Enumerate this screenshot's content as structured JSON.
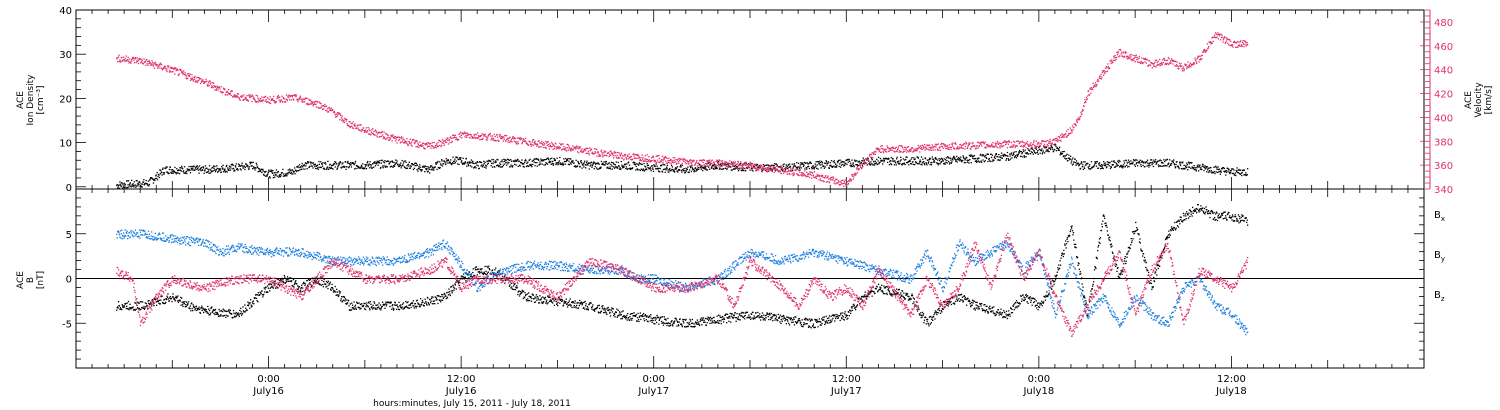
{
  "colors": {
    "black": "#000000",
    "red": "#e0306a",
    "blue": "#1e7fe0"
  },
  "xaxis": {
    "title": "hours:minutes, July 15, 2011 - July 18, 2011",
    "ticks": [
      {
        "t": 24,
        "time": "0:00",
        "day": "July16"
      },
      {
        "t": 36,
        "time": "12:00",
        "day": "July16"
      },
      {
        "t": 48,
        "time": "0:00",
        "day": "July17"
      },
      {
        "t": 60,
        "time": "12:00",
        "day": "July17"
      },
      {
        "t": 72,
        "time": "0:00",
        "day": "July18"
      },
      {
        "t": 84,
        "time": "12:00",
        "day": "July18"
      }
    ]
  },
  "chart_data": [
    {
      "type": "scatter",
      "panel": "top",
      "ylabel_left": [
        "ACE",
        "Ion Density",
        "[cm⁻³]"
      ],
      "ylabel_right": [
        "ACE",
        "Velocity",
        "[km/s]"
      ],
      "ylim_left": [
        -0.5,
        40
      ],
      "yticks_left": [
        0,
        10,
        20,
        30,
        40
      ],
      "ylim_right": [
        340,
        490
      ],
      "yticks_right": [
        340,
        360,
        380,
        400,
        420,
        440,
        460,
        480
      ],
      "x_unit": "hours since July 15, 2011 00:00",
      "series": [
        {
          "axis": "left",
          "color": "black",
          "points": [
            [
              14.5,
              0.5
            ],
            [
              16.5,
              1
            ],
            [
              17.5,
              4
            ],
            [
              20,
              4
            ],
            [
              22,
              4.5
            ],
            [
              23,
              5
            ],
            [
              24,
              3
            ],
            [
              25.5,
              3.5
            ],
            [
              26,
              5
            ],
            [
              28,
              5
            ],
            [
              30,
              5
            ],
            [
              32,
              5.5
            ],
            [
              34,
              4
            ],
            [
              35,
              6
            ],
            [
              36,
              6
            ],
            [
              37,
              5
            ],
            [
              38,
              5.5
            ],
            [
              40,
              5.5
            ],
            [
              42,
              6
            ],
            [
              44,
              5
            ],
            [
              46,
              5
            ],
            [
              48,
              4.5
            ],
            [
              50,
              4
            ],
            [
              52,
              5
            ],
            [
              54,
              4.5
            ],
            [
              56,
              4.5
            ],
            [
              58,
              5
            ],
            [
              60,
              5.5
            ],
            [
              62,
              6
            ],
            [
              64,
              6
            ],
            [
              66,
              6
            ],
            [
              68,
              6.5
            ],
            [
              70,
              7
            ],
            [
              71.5,
              8
            ],
            [
              73,
              9
            ],
            [
              74,
              6
            ],
            [
              74.5,
              5
            ],
            [
              76,
              5
            ],
            [
              78,
              5.5
            ],
            [
              80,
              5.5
            ],
            [
              82,
              4.5
            ],
            [
              84,
              3.5
            ],
            [
              85,
              3.5
            ]
          ]
        },
        {
          "axis": "right",
          "color": "red",
          "points": [
            [
              14.5,
              450
            ],
            [
              16,
              448
            ],
            [
              18,
              440
            ],
            [
              20,
              430
            ],
            [
              22,
              418
            ],
            [
              24,
              415
            ],
            [
              25.5,
              417
            ],
            [
              27,
              412
            ],
            [
              28,
              405
            ],
            [
              29,
              395
            ],
            [
              30,
              390
            ],
            [
              32,
              382
            ],
            [
              34,
              376
            ],
            [
              35,
              380
            ],
            [
              36,
              386
            ],
            [
              38,
              384
            ],
            [
              40,
              380
            ],
            [
              42,
              376
            ],
            [
              44,
              372
            ],
            [
              46,
              368
            ],
            [
              48,
              366
            ],
            [
              50,
              363
            ],
            [
              52,
              362
            ],
            [
              54,
              360
            ],
            [
              56,
              356
            ],
            [
              58,
              352
            ],
            [
              59,
              348
            ],
            [
              60,
              345
            ],
            [
              61,
              362
            ],
            [
              62,
              374
            ],
            [
              64,
              374
            ],
            [
              66,
              376
            ],
            [
              68,
              377
            ],
            [
              70,
              378
            ],
            [
              72,
              378
            ],
            [
              73,
              380
            ],
            [
              74,
              390
            ],
            [
              74.5,
              400
            ],
            [
              75,
              420
            ],
            [
              76,
              438
            ],
            [
              77,
              455
            ],
            [
              78,
              450
            ],
            [
              79,
              445
            ],
            [
              80,
              448
            ],
            [
              81,
              442
            ],
            [
              82,
              450
            ],
            [
              83,
              470
            ],
            [
              84,
              462
            ],
            [
              85,
              462
            ]
          ]
        }
      ]
    },
    {
      "type": "scatter",
      "panel": "bottom",
      "ylabel": [
        "ACE",
        "B",
        "[nT]"
      ],
      "ylim": [
        -10,
        10
      ],
      "yticks": [
        -5,
        0,
        5
      ],
      "x_unit": "hours since July 15, 2011 00:00",
      "legend": [
        {
          "label": "Bx",
          "color": "black"
        },
        {
          "label": "By",
          "color": "blue"
        },
        {
          "label": "Bz",
          "color": "red"
        }
      ],
      "series": [
        {
          "name": "Bx",
          "color": "black",
          "points": [
            [
              14.5,
              -3
            ],
            [
              16,
              -3
            ],
            [
              18,
              -2
            ],
            [
              19,
              -3
            ],
            [
              20,
              -3.5
            ],
            [
              22,
              -4
            ],
            [
              24,
              -1
            ],
            [
              25,
              0
            ],
            [
              26,
              -1
            ],
            [
              27,
              0
            ],
            [
              28,
              -1
            ],
            [
              29,
              -3
            ],
            [
              30,
              -3
            ],
            [
              32,
              -3
            ],
            [
              34,
              -2.5
            ],
            [
              35,
              -2
            ],
            [
              36,
              0
            ],
            [
              37,
              1
            ],
            [
              38,
              1
            ],
            [
              39,
              -0.5
            ],
            [
              40,
              -2
            ],
            [
              42,
              -2.5
            ],
            [
              44,
              -3
            ],
            [
              46,
              -4
            ],
            [
              48,
              -4.5
            ],
            [
              50,
              -5
            ],
            [
              52,
              -4.5
            ],
            [
              54,
              -4
            ],
            [
              56,
              -4.5
            ],
            [
              58,
              -5
            ],
            [
              60,
              -4
            ],
            [
              61,
              -2
            ],
            [
              62,
              -1
            ],
            [
              64,
              -2
            ],
            [
              65,
              -5
            ],
            [
              66,
              -3
            ],
            [
              67,
              -2
            ],
            [
              68,
              -3
            ],
            [
              70,
              -4
            ],
            [
              71,
              -2
            ],
            [
              72,
              -3
            ],
            [
              73,
              0
            ],
            [
              74,
              6
            ],
            [
              75,
              -4
            ],
            [
              76,
              7
            ],
            [
              77,
              0
            ],
            [
              78,
              6
            ],
            [
              79,
              -1
            ],
            [
              80,
              5
            ],
            [
              81,
              7
            ],
            [
              82,
              8
            ],
            [
              83,
              7
            ],
            [
              84,
              7
            ],
            [
              85,
              6.5
            ]
          ]
        },
        {
          "name": "By",
          "color": "blue",
          "points": [
            [
              14.5,
              5
            ],
            [
              16,
              5
            ],
            [
              18,
              4.5
            ],
            [
              20,
              4
            ],
            [
              21,
              3
            ],
            [
              22,
              3.5
            ],
            [
              24,
              3
            ],
            [
              25,
              3
            ],
            [
              26,
              3
            ],
            [
              28,
              2
            ],
            [
              30,
              2
            ],
            [
              32,
              2
            ],
            [
              34,
              3
            ],
            [
              35,
              4
            ],
            [
              36,
              1.5
            ],
            [
              37,
              -1
            ],
            [
              38,
              0.5
            ],
            [
              40,
              1.5
            ],
            [
              42,
              1.5
            ],
            [
              44,
              1
            ],
            [
              46,
              1
            ],
            [
              47,
              0
            ],
            [
              48,
              0
            ],
            [
              50,
              -1
            ],
            [
              52,
              0
            ],
            [
              54,
              3
            ],
            [
              56,
              2
            ],
            [
              58,
              3
            ],
            [
              60,
              2
            ],
            [
              62,
              1
            ],
            [
              64,
              0
            ],
            [
              65,
              3
            ],
            [
              66,
              -1
            ],
            [
              67,
              4
            ],
            [
              68,
              2
            ],
            [
              70,
              4
            ],
            [
              71,
              1
            ],
            [
              72,
              3
            ],
            [
              73,
              -4
            ],
            [
              74,
              2
            ],
            [
              75,
              -4
            ],
            [
              76,
              -2
            ],
            [
              77,
              -5
            ],
            [
              78,
              -2
            ],
            [
              79,
              -4
            ],
            [
              80,
              -5
            ],
            [
              81,
              -1
            ],
            [
              82,
              0
            ],
            [
              83,
              -3
            ],
            [
              84,
              -4
            ],
            [
              85,
              -6
            ]
          ]
        },
        {
          "name": "Bz",
          "color": "red",
          "points": [
            [
              14.5,
              1
            ],
            [
              15.5,
              0
            ],
            [
              16,
              -5
            ],
            [
              17,
              -2
            ],
            [
              18,
              0
            ],
            [
              20,
              -1
            ],
            [
              22,
              0
            ],
            [
              24,
              0
            ],
            [
              25,
              -1
            ],
            [
              26,
              -2
            ],
            [
              27,
              0
            ],
            [
              28,
              2
            ],
            [
              30,
              0
            ],
            [
              32,
              0
            ],
            [
              34,
              1
            ],
            [
              35,
              2
            ],
            [
              36,
              -1
            ],
            [
              37,
              0
            ],
            [
              38,
              0
            ],
            [
              40,
              0
            ],
            [
              42,
              -2
            ],
            [
              44,
              2
            ],
            [
              46,
              1
            ],
            [
              48,
              -1
            ],
            [
              50,
              -1
            ],
            [
              52,
              0
            ],
            [
              53,
              -3
            ],
            [
              54,
              2
            ],
            [
              56,
              -1
            ],
            [
              57,
              -3
            ],
            [
              58,
              0
            ],
            [
              59,
              -2
            ],
            [
              60,
              -1
            ],
            [
              61,
              -3
            ],
            [
              62,
              1
            ],
            [
              64,
              -4
            ],
            [
              65,
              0
            ],
            [
              66,
              -3
            ],
            [
              67,
              -1
            ],
            [
              68,
              4
            ],
            [
              69,
              -1
            ],
            [
              70,
              5
            ],
            [
              71,
              0
            ],
            [
              72,
              3
            ],
            [
              73,
              -2
            ],
            [
              74,
              -6
            ],
            [
              75,
              -3
            ],
            [
              76,
              0
            ],
            [
              77,
              3
            ],
            [
              78,
              -4
            ],
            [
              79,
              1
            ],
            [
              80,
              4
            ],
            [
              81,
              -5
            ],
            [
              82,
              1
            ],
            [
              83,
              0
            ],
            [
              84,
              -1
            ],
            [
              85,
              2
            ]
          ]
        }
      ]
    }
  ]
}
